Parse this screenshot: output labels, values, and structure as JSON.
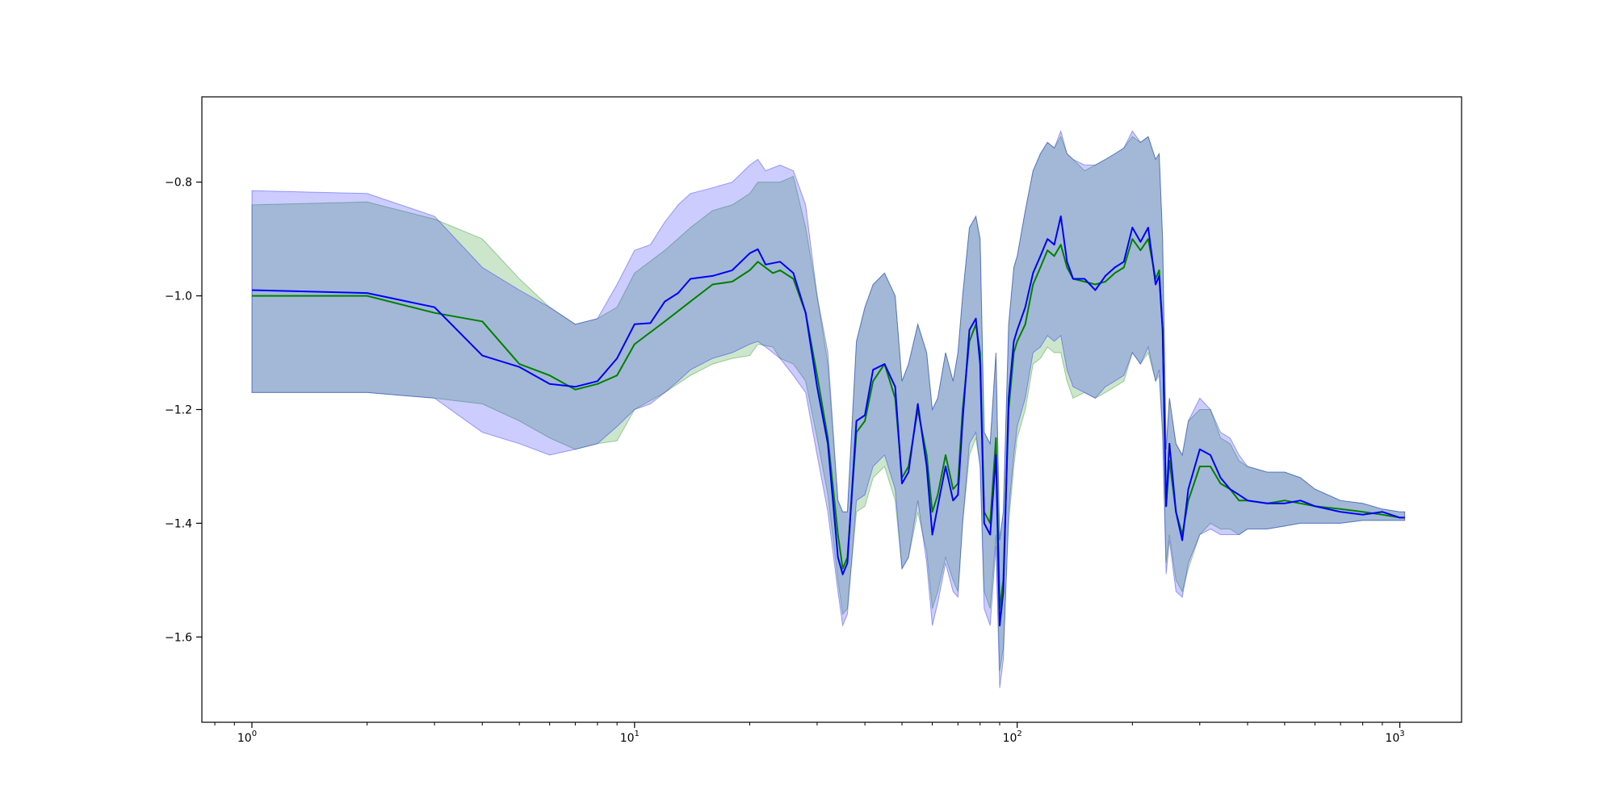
{
  "chart_data": {
    "type": "line",
    "title": "",
    "xlabel": "",
    "ylabel": "",
    "xscale": "log",
    "xlim": [
      0.74,
      1450
    ],
    "ylim": [
      -1.75,
      -0.65
    ],
    "grid": false,
    "legend": "none",
    "x_ticks": [
      {
        "base": "10",
        "exp": "0",
        "value": 1
      },
      {
        "base": "10",
        "exp": "1",
        "value": 10
      },
      {
        "base": "10",
        "exp": "2",
        "value": 100
      },
      {
        "base": "10",
        "exp": "3",
        "value": 1000
      }
    ],
    "y_ticks": [
      {
        "label": "−0.8",
        "value": -0.8
      },
      {
        "label": "−1.0",
        "value": -1.0
      },
      {
        "label": "−1.2",
        "value": -1.2
      },
      {
        "label": "−1.4",
        "value": -1.4
      },
      {
        "label": "−1.6",
        "value": -1.6
      }
    ],
    "series": [
      {
        "color": "#008000",
        "band_color": "#008000",
        "band_opacity": 0.2,
        "x": [
          1,
          2,
          3,
          4,
          5,
          6,
          7,
          8,
          9,
          10,
          12,
          14,
          16,
          18,
          20,
          21,
          23,
          24,
          26,
          28,
          30,
          32,
          34,
          35,
          36,
          38,
          40,
          42,
          45,
          48,
          50,
          52,
          55,
          58,
          60,
          62,
          65,
          68,
          70,
          72,
          75,
          78,
          80,
          82,
          85,
          88,
          90,
          92,
          95,
          98,
          100,
          105,
          110,
          115,
          120,
          125,
          130,
          135,
          140,
          150,
          160,
          170,
          180,
          190,
          200,
          210,
          220,
          230,
          235,
          240,
          245,
          250,
          260,
          270,
          280,
          300,
          320,
          340,
          360,
          380,
          400,
          450,
          500,
          550,
          600,
          700,
          800,
          900,
          1000,
          1030
        ],
        "y": [
          -1.0,
          -1.0,
          -1.03,
          -1.045,
          -1.12,
          -1.14,
          -1.165,
          -1.155,
          -1.14,
          -1.085,
          -1.045,
          -1.01,
          -0.98,
          -0.975,
          -0.955,
          -0.94,
          -0.96,
          -0.955,
          -0.97,
          -1.03,
          -1.14,
          -1.25,
          -1.42,
          -1.48,
          -1.46,
          -1.24,
          -1.22,
          -1.15,
          -1.12,
          -1.18,
          -1.32,
          -1.3,
          -1.2,
          -1.28,
          -1.38,
          -1.35,
          -1.28,
          -1.34,
          -1.33,
          -1.2,
          -1.08,
          -1.05,
          -1.1,
          -1.38,
          -1.4,
          -1.25,
          -1.55,
          -1.5,
          -1.2,
          -1.1,
          -1.08,
          -1.05,
          -0.98,
          -0.95,
          -0.92,
          -0.93,
          -0.91,
          -0.95,
          -0.97,
          -0.975,
          -0.98,
          -0.975,
          -0.96,
          -0.95,
          -0.9,
          -0.92,
          -0.9,
          -0.97,
          -0.955,
          -1.06,
          -1.37,
          -1.29,
          -1.38,
          -1.42,
          -1.36,
          -1.3,
          -1.3,
          -1.33,
          -1.34,
          -1.36,
          -1.36,
          -1.365,
          -1.36,
          -1.365,
          -1.37,
          -1.375,
          -1.38,
          -1.385,
          -1.39,
          -1.39
        ],
        "lower": [
          -1.17,
          -1.17,
          -1.18,
          -1.19,
          -1.22,
          -1.25,
          -1.27,
          -1.26,
          -1.255,
          -1.2,
          -1.17,
          -1.14,
          -1.12,
          -1.11,
          -1.105,
          -1.085,
          -1.09,
          -1.11,
          -1.12,
          -1.15,
          -1.25,
          -1.35,
          -1.5,
          -1.56,
          -1.55,
          -1.38,
          -1.37,
          -1.32,
          -1.3,
          -1.36,
          -1.48,
          -1.46,
          -1.38,
          -1.45,
          -1.55,
          -1.52,
          -1.46,
          -1.5,
          -1.52,
          -1.4,
          -1.28,
          -1.25,
          -1.3,
          -1.52,
          -1.55,
          -1.42,
          -1.66,
          -1.62,
          -1.4,
          -1.3,
          -1.25,
          -1.2,
          -1.12,
          -1.11,
          -1.09,
          -1.1,
          -1.1,
          -1.15,
          -1.18,
          -1.17,
          -1.18,
          -1.17,
          -1.16,
          -1.15,
          -1.1,
          -1.12,
          -1.1,
          -1.15,
          -1.14,
          -1.25,
          -1.47,
          -1.42,
          -1.5,
          -1.52,
          -1.48,
          -1.42,
          -1.4,
          -1.41,
          -1.41,
          -1.42,
          -1.41,
          -1.41,
          -1.405,
          -1.4,
          -1.4,
          -1.4,
          -1.395,
          -1.395,
          -1.395,
          -1.395
        ],
        "upper": [
          -0.84,
          -0.835,
          -0.865,
          -0.9,
          -0.97,
          -1.02,
          -1.05,
          -1.04,
          -1.02,
          -0.96,
          -0.92,
          -0.88,
          -0.85,
          -0.84,
          -0.82,
          -0.8,
          -0.8,
          -0.8,
          -0.79,
          -0.88,
          -1.0,
          -1.12,
          -1.36,
          -1.38,
          -1.38,
          -1.08,
          -1.02,
          -0.98,
          -0.96,
          -1.0,
          -1.15,
          -1.12,
          -1.05,
          -1.1,
          -1.2,
          -1.18,
          -1.1,
          -1.15,
          -1.1,
          -1.0,
          -0.88,
          -0.86,
          -0.9,
          -1.24,
          -1.26,
          -1.1,
          -1.43,
          -1.38,
          -1.05,
          -0.95,
          -0.93,
          -0.85,
          -0.78,
          -0.75,
          -0.73,
          -0.74,
          -0.72,
          -0.75,
          -0.76,
          -0.78,
          -0.77,
          -0.76,
          -0.75,
          -0.74,
          -0.72,
          -0.73,
          -0.72,
          -0.76,
          -0.75,
          -0.9,
          -1.27,
          -1.18,
          -1.26,
          -1.28,
          -1.22,
          -1.2,
          -1.2,
          -1.25,
          -1.26,
          -1.29,
          -1.3,
          -1.31,
          -1.31,
          -1.32,
          -1.34,
          -1.36,
          -1.365,
          -1.375,
          -1.38,
          -1.38
        ]
      },
      {
        "color": "#0000ff",
        "band_color": "#0000ff",
        "band_opacity": 0.2,
        "x": [
          1,
          2,
          3,
          4,
          5,
          6,
          7,
          8,
          9,
          10,
          11,
          12,
          13,
          14,
          16,
          18,
          20,
          21,
          22,
          24,
          26,
          28,
          30,
          32,
          34,
          35,
          36,
          38,
          40,
          42,
          45,
          48,
          50,
          52,
          55,
          58,
          60,
          62,
          65,
          68,
          70,
          72,
          75,
          78,
          80,
          82,
          85,
          88,
          90,
          92,
          95,
          98,
          100,
          105,
          110,
          115,
          120,
          125,
          130,
          135,
          140,
          150,
          160,
          170,
          180,
          190,
          200,
          210,
          220,
          230,
          235,
          240,
          245,
          250,
          260,
          270,
          280,
          300,
          320,
          340,
          360,
          380,
          400,
          450,
          500,
          550,
          600,
          700,
          800,
          900,
          1000,
          1030
        ],
        "y": [
          -0.99,
          -0.995,
          -1.02,
          -1.105,
          -1.125,
          -1.155,
          -1.16,
          -1.15,
          -1.11,
          -1.05,
          -1.048,
          -1.01,
          -0.995,
          -0.97,
          -0.965,
          -0.955,
          -0.925,
          -0.918,
          -0.945,
          -0.94,
          -0.96,
          -1.03,
          -1.16,
          -1.26,
          -1.46,
          -1.49,
          -1.47,
          -1.22,
          -1.21,
          -1.13,
          -1.12,
          -1.16,
          -1.33,
          -1.31,
          -1.19,
          -1.3,
          -1.42,
          -1.37,
          -1.3,
          -1.36,
          -1.35,
          -1.22,
          -1.06,
          -1.04,
          -1.12,
          -1.4,
          -1.42,
          -1.28,
          -1.58,
          -1.52,
          -1.18,
          -1.08,
          -1.06,
          -1.02,
          -0.96,
          -0.93,
          -0.9,
          -0.91,
          -0.86,
          -0.94,
          -0.97,
          -0.97,
          -0.99,
          -0.965,
          -0.95,
          -0.94,
          -0.88,
          -0.905,
          -0.88,
          -0.98,
          -0.965,
          -1.06,
          -1.37,
          -1.26,
          -1.38,
          -1.43,
          -1.34,
          -1.27,
          -1.28,
          -1.32,
          -1.34,
          -1.35,
          -1.36,
          -1.365,
          -1.365,
          -1.36,
          -1.37,
          -1.38,
          -1.385,
          -1.38,
          -1.39,
          -1.39
        ],
        "lower": [
          -1.17,
          -1.17,
          -1.18,
          -1.24,
          -1.26,
          -1.28,
          -1.27,
          -1.26,
          -1.23,
          -1.2,
          -1.19,
          -1.17,
          -1.15,
          -1.13,
          -1.11,
          -1.1,
          -1.085,
          -1.08,
          -1.09,
          -1.11,
          -1.14,
          -1.17,
          -1.28,
          -1.38,
          -1.52,
          -1.58,
          -1.56,
          -1.36,
          -1.35,
          -1.3,
          -1.28,
          -1.34,
          -1.48,
          -1.46,
          -1.36,
          -1.47,
          -1.58,
          -1.54,
          -1.47,
          -1.52,
          -1.53,
          -1.4,
          -1.26,
          -1.24,
          -1.3,
          -1.55,
          -1.58,
          -1.44,
          -1.69,
          -1.64,
          -1.38,
          -1.28,
          -1.23,
          -1.18,
          -1.1,
          -1.09,
          -1.07,
          -1.08,
          -1.07,
          -1.13,
          -1.16,
          -1.17,
          -1.18,
          -1.16,
          -1.15,
          -1.14,
          -1.1,
          -1.12,
          -1.09,
          -1.15,
          -1.13,
          -1.24,
          -1.49,
          -1.43,
          -1.52,
          -1.53,
          -1.47,
          -1.42,
          -1.41,
          -1.42,
          -1.42,
          -1.42,
          -1.41,
          -1.41,
          -1.405,
          -1.4,
          -1.4,
          -1.4,
          -1.395,
          -1.395,
          -1.395,
          -1.395
        ],
        "upper": [
          -0.815,
          -0.82,
          -0.86,
          -0.95,
          -0.99,
          -1.02,
          -1.05,
          -1.04,
          -0.98,
          -0.92,
          -0.91,
          -0.87,
          -0.84,
          -0.82,
          -0.81,
          -0.8,
          -0.77,
          -0.76,
          -0.78,
          -0.77,
          -0.78,
          -0.84,
          -1.0,
          -1.1,
          -1.36,
          -1.38,
          -1.38,
          -1.08,
          -1.02,
          -0.98,
          -0.96,
          -1.0,
          -1.15,
          -1.12,
          -1.05,
          -1.1,
          -1.2,
          -1.18,
          -1.1,
          -1.15,
          -1.1,
          -1.0,
          -0.88,
          -0.86,
          -0.9,
          -1.24,
          -1.26,
          -1.1,
          -1.43,
          -1.38,
          -1.05,
          -0.95,
          -0.93,
          -0.85,
          -0.78,
          -0.75,
          -0.73,
          -0.74,
          -0.71,
          -0.75,
          -0.76,
          -0.77,
          -0.77,
          -0.76,
          -0.75,
          -0.74,
          -0.71,
          -0.73,
          -0.72,
          -0.76,
          -0.75,
          -0.9,
          -1.27,
          -1.18,
          -1.26,
          -1.28,
          -1.22,
          -1.18,
          -1.2,
          -1.24,
          -1.25,
          -1.28,
          -1.3,
          -1.31,
          -1.31,
          -1.32,
          -1.34,
          -1.36,
          -1.365,
          -1.375,
          -1.38,
          -1.38
        ]
      }
    ]
  }
}
